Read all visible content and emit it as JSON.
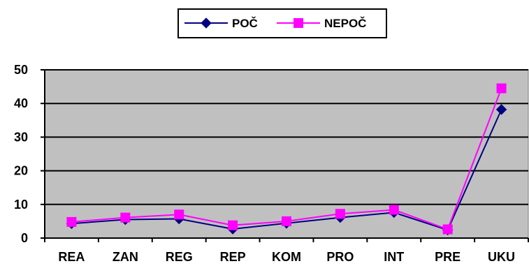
{
  "chart_data": {
    "type": "line",
    "categories": [
      "REA",
      "ZAN",
      "REG",
      "REP",
      "KOM",
      "PRO",
      "INT",
      "PRE",
      "UKU"
    ],
    "series": [
      {
        "name": "POČ",
        "values": [
          4.3,
          5.5,
          5.7,
          2.7,
          4.4,
          6.1,
          7.6,
          2.4,
          38.2
        ],
        "color": "#000080",
        "marker": "diamond"
      },
      {
        "name": "NEPOČ",
        "values": [
          4.8,
          6.1,
          7.0,
          3.8,
          5.0,
          7.2,
          8.4,
          2.6,
          44.5
        ],
        "color": "#ff00ff",
        "marker": "square"
      }
    ],
    "ylim": [
      0,
      50
    ],
    "yticks": [
      "0",
      "10",
      "20",
      "30",
      "40",
      "50"
    ],
    "title": "",
    "xlabel": "",
    "ylabel": "",
    "grid": true,
    "legend_position": "top",
    "plot_background": "#c0c0c0"
  }
}
